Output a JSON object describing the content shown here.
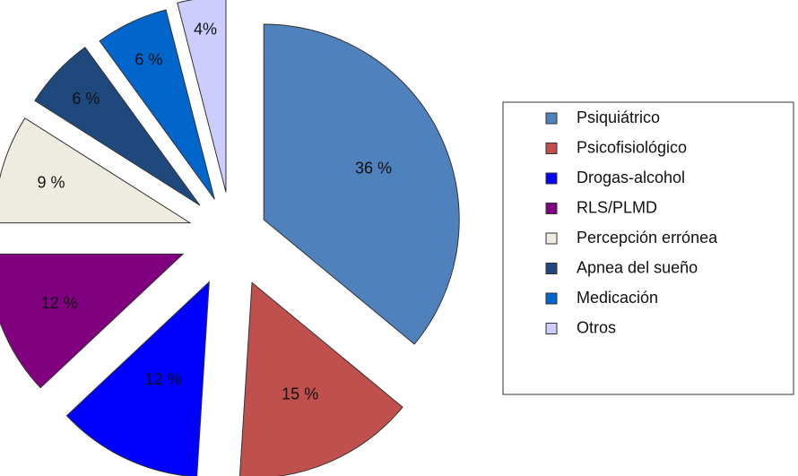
{
  "chart_data": {
    "type": "pie",
    "exploded": true,
    "legend_position": "right",
    "series": [
      {
        "name": "Psiquiátrico",
        "value": 36,
        "label": "36 %",
        "color": "#4F81BD"
      },
      {
        "name": "Psicofisiológico",
        "value": 15,
        "label": "15 %",
        "color": "#C0504D"
      },
      {
        "name": "Drogas-alcohol",
        "value": 12,
        "label": "12 %",
        "color": "#0000FF"
      },
      {
        "name": "RLS/PLMD",
        "value": 12,
        "label": "12 %",
        "color": "#800080"
      },
      {
        "name": "Percepción errónea",
        "value": 9,
        "label": "9 %",
        "color": "#EEECE1"
      },
      {
        "name": "Apnea del sueño",
        "value": 6,
        "label": "6 %",
        "color": "#1F497D"
      },
      {
        "name": "Medicación",
        "value": 6,
        "label": "6 %",
        "color": "#0066CC"
      },
      {
        "name": "Otros",
        "value": 4,
        "label": "4%",
        "color": "#CCCCFF"
      }
    ]
  }
}
